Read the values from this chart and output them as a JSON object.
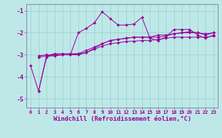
{
  "xlabel": "Windchill (Refroidissement éolien,°C)",
  "bg_color": "#bee8e8",
  "line_color": "#990099",
  "grid_color": "#99cccc",
  "xlim": [
    -0.5,
    23.5
  ],
  "ylim": [
    -5.4,
    -0.7
  ],
  "yticks": [
    -5,
    -4,
    -3,
    -2,
    -1
  ],
  "xticks": [
    0,
    1,
    2,
    3,
    4,
    5,
    6,
    7,
    8,
    9,
    10,
    11,
    12,
    13,
    14,
    15,
    16,
    17,
    18,
    19,
    20,
    21,
    22,
    23
  ],
  "line1_x": [
    1,
    2,
    3,
    4,
    5,
    6,
    7,
    8,
    9,
    10,
    11,
    12,
    13,
    14,
    15,
    16,
    17,
    18,
    19,
    20,
    21,
    22,
    23
  ],
  "line1_y": [
    -4.65,
    -3.1,
    -3.0,
    -3.0,
    -3.0,
    -2.0,
    -1.8,
    -1.55,
    -1.05,
    -1.35,
    -1.65,
    -1.65,
    -1.6,
    -1.3,
    -2.25,
    -2.35,
    -2.2,
    -1.85,
    -1.85,
    -1.85,
    -2.1,
    -2.25,
    -2.1
  ],
  "line2_x": [
    0,
    1,
    2,
    3,
    4,
    5,
    6,
    7,
    8,
    9,
    10,
    11,
    12,
    13,
    14,
    15,
    16,
    17,
    18,
    19,
    20,
    21,
    22,
    23
  ],
  "line2_y": [
    -3.5,
    -4.65,
    -3.05,
    -2.95,
    -2.95,
    -2.95,
    -2.95,
    -2.9,
    -2.7,
    -2.5,
    -2.35,
    -2.3,
    -2.25,
    -2.2,
    -2.2,
    -2.2,
    -2.2,
    -2.15,
    -2.05,
    -2.0,
    -1.95,
    -2.0,
    -2.1,
    -2.0
  ],
  "line3_x": [
    1,
    2,
    3,
    4,
    5,
    6,
    7,
    8,
    9,
    10,
    11,
    12,
    13,
    14,
    15,
    16,
    17,
    18,
    19,
    20,
    21,
    22,
    23
  ],
  "line3_y": [
    -3.05,
    -3.0,
    -3.0,
    -3.0,
    -3.0,
    -2.95,
    -2.8,
    -2.65,
    -2.5,
    -2.35,
    -2.3,
    -2.25,
    -2.2,
    -2.2,
    -2.2,
    -2.1,
    -2.1,
    -2.05,
    -2.0,
    -2.0,
    -2.0,
    -2.05,
    -2.0
  ],
  "line4_x": [
    1,
    2,
    3,
    4,
    5,
    6,
    7,
    8,
    9,
    10,
    11,
    12,
    13,
    14,
    15,
    16,
    17,
    18,
    19,
    20,
    21,
    22,
    23
  ],
  "line4_y": [
    -3.1,
    -3.05,
    -3.05,
    -3.0,
    -3.0,
    -3.0,
    -2.9,
    -2.75,
    -2.6,
    -2.5,
    -2.45,
    -2.4,
    -2.38,
    -2.35,
    -2.35,
    -2.3,
    -2.25,
    -2.2,
    -2.2,
    -2.2,
    -2.2,
    -2.2,
    -2.15
  ],
  "xtick_fontsize": 5.2,
  "ytick_fontsize": 6.5,
  "xlabel_fontsize": 6.5,
  "markersize": 2.0
}
